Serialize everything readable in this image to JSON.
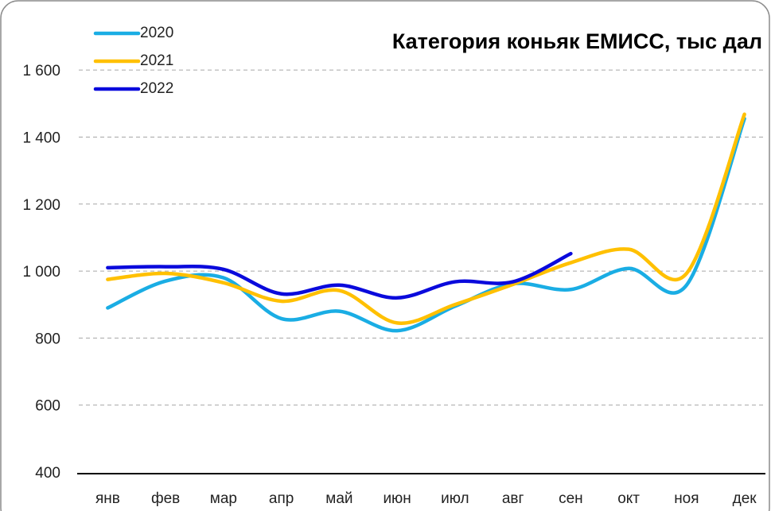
{
  "chart_data": {
    "type": "line",
    "title": "Категория коньяк ЕМИСС, тыс дал",
    "categories": [
      "янв",
      "фев",
      "мар",
      "апр",
      "май",
      "июн",
      "июл",
      "авг",
      "сен",
      "окт",
      "ноя",
      "дек"
    ],
    "series": [
      {
        "name": "2020",
        "color": "#1aade4",
        "values": [
          890,
          970,
          980,
          858,
          880,
          822,
          895,
          962,
          945,
          1008,
          958,
          1455
        ]
      },
      {
        "name": "2021",
        "color": "#ffc000",
        "values": [
          975,
          993,
          965,
          910,
          942,
          845,
          900,
          960,
          1025,
          1065,
          993,
          1468
        ]
      },
      {
        "name": "2022",
        "color": "#0a0adc",
        "values": [
          1010,
          1013,
          1005,
          932,
          958,
          920,
          968,
          968,
          1052,
          null,
          null,
          null
        ]
      }
    ],
    "ylim": [
      400,
      1700
    ],
    "yticks": [
      400,
      600,
      800,
      {
        "value": 1000,
        "label": "1 000"
      },
      {
        "value": 1200,
        "label": "1 200"
      },
      {
        "value": 1400,
        "label": "1 400"
      },
      {
        "value": 1600,
        "label": "1 600"
      }
    ],
    "grid": true,
    "legend": "top-left"
  }
}
